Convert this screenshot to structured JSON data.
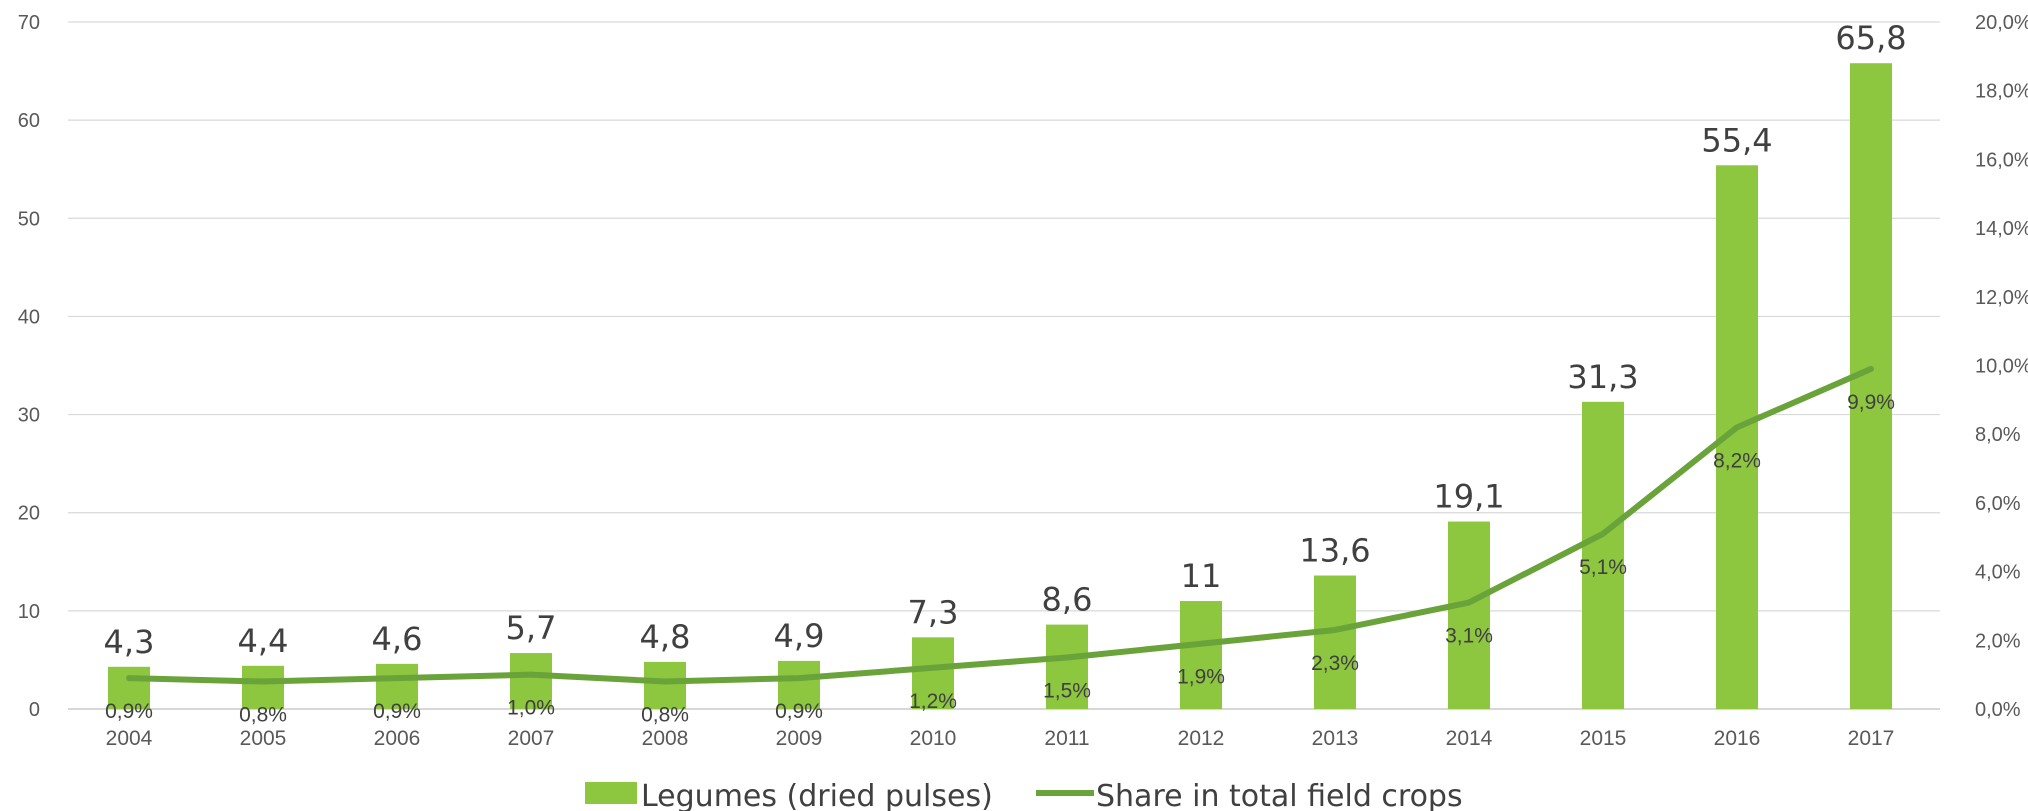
{
  "chart_data": {
    "type": "bar",
    "categories": [
      "2004",
      "2005",
      "2006",
      "2007",
      "2008",
      "2009",
      "2010",
      "2011",
      "2012",
      "2013",
      "2014",
      "2015",
      "2016",
      "2017"
    ],
    "series": [
      {
        "name": "Legumes (dried pulses)",
        "type": "bar",
        "axis": "left",
        "color": "#8dc63f",
        "values": [
          4.3,
          4.4,
          4.6,
          5.7,
          4.8,
          4.9,
          7.3,
          8.6,
          11,
          13.6,
          19.1,
          31.3,
          55.4,
          65.8
        ],
        "labels": [
          "4,3",
          "4,4",
          "4,6",
          "5,7",
          "4,8",
          "4,9",
          "7,3",
          "8,6",
          "11",
          "13,6",
          "19,1",
          "31,3",
          "55,4",
          "65,8"
        ]
      },
      {
        "name": "Share in total field crops",
        "type": "line",
        "axis": "right",
        "color": "#6aa33a",
        "values": [
          0.9,
          0.8,
          0.9,
          1.0,
          0.8,
          0.9,
          1.2,
          1.5,
          1.9,
          2.3,
          3.1,
          5.1,
          8.2,
          9.9
        ],
        "labels": [
          "0,9%",
          "0,8%",
          "0,9%",
          "1,0%",
          "0,8%",
          "0,9%",
          "1,2%",
          "1,5%",
          "1,9%",
          "2,3%",
          "3,1%",
          "5,1%",
          "8,2%",
          "9,9%"
        ]
      }
    ],
    "left_axis": {
      "ylim": [
        0,
        70
      ],
      "ticks": [
        "0",
        "10",
        "20",
        "30",
        "40",
        "50",
        "60",
        "70"
      ]
    },
    "right_axis": {
      "ylim": [
        0,
        20
      ],
      "ticks": [
        "0,0%",
        "2,0%",
        "4,0%",
        "6,0%",
        "8,0%",
        "10,0%",
        "12,0%",
        "14,0%",
        "16,0%",
        "18,0%",
        "20,0%"
      ]
    },
    "grid": true,
    "legend_position": "bottom",
    "title": "",
    "xlabel": "",
    "ylabel": ""
  }
}
